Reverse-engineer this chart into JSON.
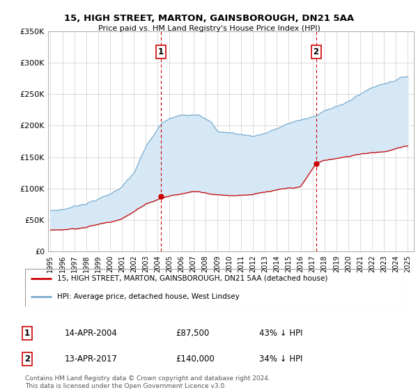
{
  "title": "15, HIGH STREET, MARTON, GAINSBOROUGH, DN21 5AA",
  "subtitle": "Price paid vs. HM Land Registry's House Price Index (HPI)",
  "ylim": [
    0,
    350000
  ],
  "xlim_start": 1994.8,
  "xlim_end": 2025.5,
  "legend_line1": "15, HIGH STREET, MARTON, GAINSBOROUGH, DN21 5AA (detached house)",
  "legend_line2": "HPI: Average price, detached house, West Lindsey",
  "purchase1_year": 2004.286,
  "purchase1_price": 87500,
  "purchase1_label": "1",
  "purchase1_date": "14-APR-2004",
  "purchase1_price_str": "£87,500",
  "purchase1_pct": "43% ↓ HPI",
  "purchase2_year": 2017.286,
  "purchase2_price": 140000,
  "purchase2_label": "2",
  "purchase2_date": "13-APR-2017",
  "purchase2_price_str": "£140,000",
  "purchase2_pct": "34% ↓ HPI",
  "line_red": "#cc0000",
  "line_blue": "#7aadcf",
  "fill_color": "#d6e8f5",
  "dashed_red": "#cc0000",
  "footnote1": "Contains HM Land Registry data © Crown copyright and database right 2024.",
  "footnote2": "This data is licensed under the Open Government Licence v3.0.",
  "background_color": "#ffffff",
  "grid_color": "#cccccc"
}
